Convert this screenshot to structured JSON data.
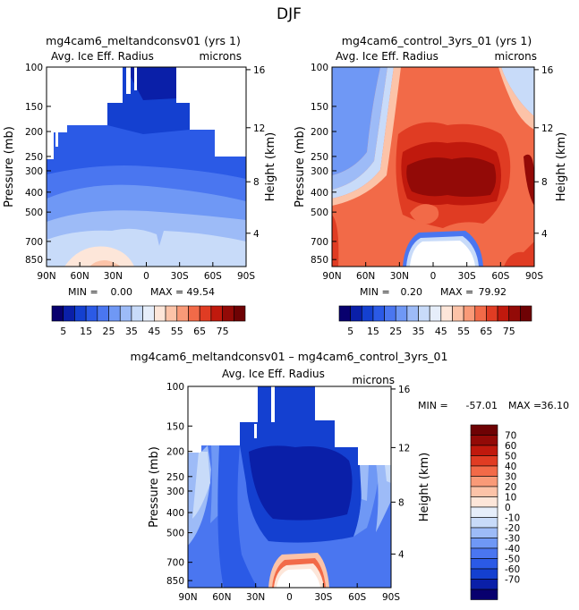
{
  "page_title": "DJF",
  "colors": {
    "ramp": [
      "#08006e",
      "#0a1fa8",
      "#1440d0",
      "#2b5ae6",
      "#4a76f0",
      "#6f98f5",
      "#9dbbf7",
      "#c8dbf9",
      "#e6eefa",
      "#fde6d9",
      "#fcc3a8",
      "#f99a78",
      "#f26a48",
      "#e03c23",
      "#c0190d",
      "#930a07",
      "#6e0204"
    ],
    "frame": "#000000",
    "background": "#ffffff"
  },
  "chart_data": [
    {
      "type": "heatmap",
      "id": "p1",
      "title": "mg4cam6_meltandconsv01 (yrs 1)",
      "subtitle": "Avg. Ice Eff. Radius",
      "units": "microns",
      "ylabel": "Pressure (mb)",
      "y2label": "Height (km)",
      "x_ticks": [
        "90N",
        "60N",
        "30N",
        "0",
        "30S",
        "60S",
        "90S"
      ],
      "y_ticks": [
        "100",
        "150",
        "200",
        "250",
        "300",
        "400",
        "500",
        "700",
        "850"
      ],
      "y2_ticks": [
        "16",
        "12",
        "8",
        "4"
      ],
      "min_label": "MIN =",
      "min_value": "0.00",
      "max_label": "MAX =",
      "max_value": "49.54"
    },
    {
      "type": "heatmap",
      "id": "p2",
      "title": "mg4cam6_control_3yrs_01 (yrs 1)",
      "subtitle": "Avg. Ice Eff. Radius",
      "units": "microns",
      "ylabel": "Pressure (mb)",
      "y2label": "Height (km)",
      "x_ticks": [
        "90N",
        "60N",
        "30N",
        "0",
        "30S",
        "60S",
        "90S"
      ],
      "y_ticks": [
        "100",
        "150",
        "200",
        "250",
        "300",
        "400",
        "500",
        "700",
        "850"
      ],
      "y2_ticks": [
        "16",
        "12",
        "8",
        "4"
      ],
      "min_label": "MIN =",
      "min_value": "0.20",
      "max_label": "MAX =",
      "max_value": "79.92"
    },
    {
      "type": "heatmap",
      "id": "p3",
      "title": "mg4cam6_meltandconsv01 – mg4cam6_control_3yrs_01",
      "subtitle": "Avg. Ice Eff. Radius",
      "units": "microns",
      "ylabel": "Pressure (mb)",
      "y2label": "Height (km)",
      "x_ticks": [
        "90N",
        "60N",
        "30N",
        "0",
        "30S",
        "60S",
        "90S"
      ],
      "y_ticks": [
        "100",
        "150",
        "200",
        "250",
        "300",
        "400",
        "500",
        "700",
        "850"
      ],
      "y2_ticks": [
        "16",
        "12",
        "8",
        "4"
      ],
      "min_label": "MIN =",
      "min_value": "-57.01",
      "max_label": "MAX =",
      "max_value": "36.10"
    }
  ],
  "colorbar_horizontal": {
    "labels": [
      "5",
      "15",
      "25",
      "35",
      "45",
      "55",
      "65",
      "75"
    ]
  },
  "colorbar_vertical": {
    "labels": [
      "70",
      "60",
      "50",
      "40",
      "30",
      "20",
      "10",
      "0",
      "-10",
      "-20",
      "-30",
      "-40",
      "-50",
      "-60",
      "-70"
    ]
  }
}
